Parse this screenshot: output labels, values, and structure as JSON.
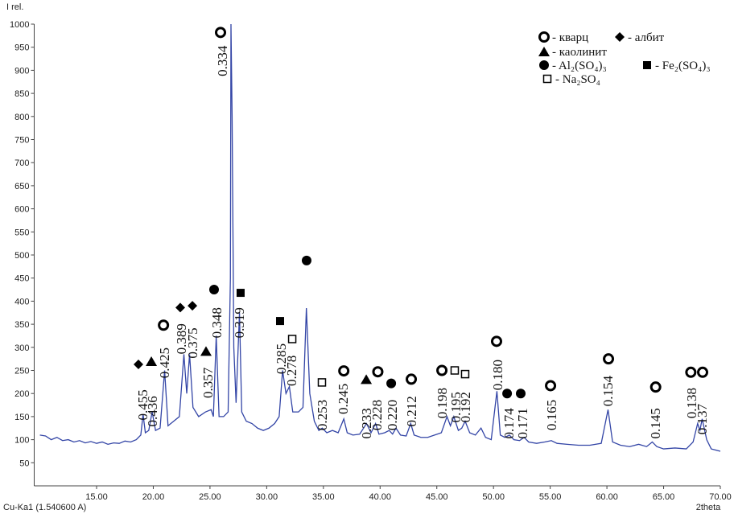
{
  "chart_data": {
    "type": "line",
    "y_label": "I rel.",
    "x_label": "2theta",
    "source_label": "Cu-Ka1 (1.540600 A)",
    "xlim": [
      9.5,
      70
    ],
    "xticks": [
      {
        "value": 15,
        "label": "15.00"
      },
      {
        "value": 20,
        "label": "20.00"
      },
      {
        "value": 25,
        "label": "25.00"
      },
      {
        "value": 30,
        "label": "30.00"
      },
      {
        "value": 35,
        "label": "35.00"
      },
      {
        "value": 40,
        "label": "40.00"
      },
      {
        "value": 45,
        "label": "45.00"
      },
      {
        "value": 50,
        "label": "50.00"
      },
      {
        "value": 55,
        "label": "55.00"
      },
      {
        "value": 60,
        "label": "60.00"
      },
      {
        "value": 65,
        "label": "65.00"
      },
      {
        "value": 70,
        "label": "70.00"
      }
    ],
    "ylim": [
      0,
      1000
    ],
    "yticks": [
      50,
      100,
      150,
      200,
      250,
      300,
      350,
      400,
      450,
      500,
      550,
      600,
      650,
      700,
      750,
      800,
      850,
      900,
      950,
      1000
    ],
    "grid": false,
    "x": [
      10,
      10.5,
      11,
      11.5,
      12,
      12.5,
      13,
      13.5,
      14,
      14.5,
      15,
      15.5,
      16,
      16.5,
      17,
      17.5,
      18,
      18.5,
      18.9,
      19.1,
      19.3,
      19.6,
      19.9,
      20.2,
      20.6,
      21.0,
      21.3,
      21.8,
      22.3,
      22.7,
      22.95,
      23.2,
      23.5,
      24,
      24.6,
      25.1,
      25.3,
      25.55,
      25.8,
      26.2,
      26.6,
      26.8,
      26.85,
      26.95,
      27.1,
      27.3,
      27.6,
      27.8,
      28.2,
      28.7,
      29.2,
      29.7,
      30.2,
      30.7,
      31.1,
      31.4,
      31.7,
      32.0,
      32.3,
      32.8,
      33.2,
      33.5,
      33.8,
      34.2,
      34.6,
      34.9,
      35.3,
      35.8,
      36.3,
      36.8,
      37.1,
      37.6,
      38.2,
      38.8,
      39.2,
      39.6,
      39.9,
      40.4,
      40.8,
      41.1,
      41.4,
      41.8,
      42.3,
      42.7,
      43,
      43.6,
      44.2,
      44.8,
      45.4,
      45.9,
      46.2,
      46.5,
      46.9,
      47.2,
      47.5,
      47.9,
      48.4,
      48.9,
      49.3,
      49.8,
      50.3,
      50.6,
      51,
      51.4,
      51.8,
      52.3,
      52.7,
      53.1,
      53.8,
      54.5,
      55.1,
      55.6,
      56.5,
      57.5,
      58.5,
      59.5,
      60.1,
      60.5,
      61.2,
      62,
      62.8,
      63.5,
      64,
      64.4,
      65,
      66,
      67,
      67.6,
      68,
      68.2,
      68.4,
      68.8,
      69.2,
      70
    ],
    "series": [
      {
        "color": "#3345a6",
        "values": [
          110,
          108,
          100,
          105,
          98,
          100,
          95,
          98,
          93,
          96,
          92,
          95,
          90,
          93,
          92,
          97,
          95,
          100,
          110,
          155,
          115,
          120,
          160,
          120,
          125,
          250,
          130,
          140,
          150,
          285,
          200,
          285,
          170,
          150,
          160,
          165,
          150,
          325,
          150,
          150,
          160,
          450,
          1000,
          800,
          300,
          180,
          375,
          160,
          140,
          135,
          125,
          120,
          125,
          135,
          150,
          250,
          200,
          215,
          160,
          160,
          170,
          385,
          200,
          140,
          120,
          125,
          115,
          120,
          115,
          145,
          115,
          110,
          112,
          135,
          115,
          135,
          112,
          115,
          120,
          112,
          125,
          110,
          108,
          135,
          110,
          105,
          105,
          110,
          115,
          150,
          130,
          150,
          120,
          125,
          140,
          115,
          110,
          125,
          105,
          100,
          205,
          110,
          105,
          110,
          100,
          98,
          105,
          95,
          92,
          95,
          98,
          92,
          90,
          88,
          88,
          92,
          165,
          95,
          88,
          85,
          90,
          85,
          95,
          85,
          80,
          82,
          80,
          95,
          135,
          120,
          145,
          100,
          80,
          75
        ]
      }
    ],
    "peaks": [
      {
        "x": 19.12,
        "y": 142,
        "label": "0.455"
      },
      {
        "x": 19.97,
        "y": 128,
        "label": "0.436"
      },
      {
        "x": 21.03,
        "y": 233,
        "label": "0.425"
      },
      {
        "x": 22.52,
        "y": 285,
        "label": "0.389"
      },
      {
        "x": 23.52,
        "y": 276,
        "label": "0.375"
      },
      {
        "x": 24.87,
        "y": 190,
        "label": "0.357"
      },
      {
        "x": 25.65,
        "y": 320,
        "label": "0.348"
      },
      {
        "x": 26.14,
        "y": 887,
        "label": "0.334"
      },
      {
        "x": 27.63,
        "y": 320,
        "label": "0.319"
      },
      {
        "x": 31.32,
        "y": 242,
        "label": "0.285"
      },
      {
        "x": 32.25,
        "y": 216,
        "label": "0.278"
      },
      {
        "x": 34.94,
        "y": 120,
        "label": "0.253"
      },
      {
        "x": 36.79,
        "y": 155,
        "label": "0.245"
      },
      {
        "x": 38.85,
        "y": 102,
        "label": "0.233"
      },
      {
        "x": 39.77,
        "y": 120,
        "label": "0.228"
      },
      {
        "x": 41.12,
        "y": 120,
        "label": "0.220"
      },
      {
        "x": 42.82,
        "y": 128,
        "label": "0.212"
      },
      {
        "x": 45.52,
        "y": 146,
        "label": "0.198"
      },
      {
        "x": 46.72,
        "y": 137,
        "label": "0.195"
      },
      {
        "x": 47.58,
        "y": 137,
        "label": "0.192"
      },
      {
        "x": 50.41,
        "y": 207,
        "label": "0.180"
      },
      {
        "x": 51.41,
        "y": 102,
        "label": "0.174"
      },
      {
        "x": 52.62,
        "y": 102,
        "label": "0.171"
      },
      {
        "x": 55.17,
        "y": 120,
        "label": "0.165"
      },
      {
        "x": 60.14,
        "y": 172,
        "label": "0.154"
      },
      {
        "x": 64.33,
        "y": 102,
        "label": "0.145"
      },
      {
        "x": 67.52,
        "y": 146,
        "label": "0.138"
      },
      {
        "x": 68.44,
        "y": 111,
        "label": "0.137"
      }
    ],
    "markers": [
      {
        "x": 20.9,
        "y": 348,
        "shape": "ring"
      },
      {
        "x": 25.93,
        "y": 982,
        "shape": "ring"
      },
      {
        "x": 36.8,
        "y": 249,
        "shape": "ring"
      },
      {
        "x": 39.8,
        "y": 247,
        "shape": "ring"
      },
      {
        "x": 42.75,
        "y": 231,
        "shape": "ring"
      },
      {
        "x": 45.45,
        "y": 250,
        "shape": "ring"
      },
      {
        "x": 50.27,
        "y": 313,
        "shape": "ring"
      },
      {
        "x": 55.03,
        "y": 217,
        "shape": "ring"
      },
      {
        "x": 60.14,
        "y": 275,
        "shape": "ring"
      },
      {
        "x": 64.3,
        "y": 214,
        "shape": "ring"
      },
      {
        "x": 67.4,
        "y": 246,
        "shape": "ring"
      },
      {
        "x": 68.44,
        "y": 246,
        "shape": "ring"
      },
      {
        "x": 18.69,
        "y": 263,
        "shape": "diamond"
      },
      {
        "x": 22.38,
        "y": 386,
        "shape": "diamond"
      },
      {
        "x": 23.45,
        "y": 390,
        "shape": "diamond"
      },
      {
        "x": 19.83,
        "y": 270,
        "shape": "triangle"
      },
      {
        "x": 24.65,
        "y": 292,
        "shape": "triangle"
      },
      {
        "x": 38.78,
        "y": 231,
        "shape": "triangle"
      },
      {
        "x": 25.36,
        "y": 425,
        "shape": "circle"
      },
      {
        "x": 33.52,
        "y": 488,
        "shape": "circle"
      },
      {
        "x": 40.98,
        "y": 222,
        "shape": "circle"
      },
      {
        "x": 51.2,
        "y": 200,
        "shape": "circle"
      },
      {
        "x": 52.4,
        "y": 200,
        "shape": "circle"
      },
      {
        "x": 27.7,
        "y": 418,
        "shape": "square"
      },
      {
        "x": 31.18,
        "y": 357,
        "shape": "square"
      },
      {
        "x": 32.25,
        "y": 318,
        "shape": "open-square"
      },
      {
        "x": 34.87,
        "y": 224,
        "shape": "open-square"
      },
      {
        "x": 46.58,
        "y": 250,
        "shape": "open-square"
      },
      {
        "x": 47.5,
        "y": 242,
        "shape": "open-square"
      }
    ],
    "legend": [
      {
        "shape": "ring",
        "label": "- кварц"
      },
      {
        "shape": "diamond",
        "label": "- албит"
      },
      {
        "shape": "triangle",
        "label": "- каолинит"
      },
      {
        "shape": "circle",
        "label": "- Al₂(SO₄)₃"
      },
      {
        "shape": "square",
        "label": "- Fe₂(SO₄)₃"
      },
      {
        "shape": "open-square",
        "label": "- Na₂SO₄"
      }
    ]
  }
}
